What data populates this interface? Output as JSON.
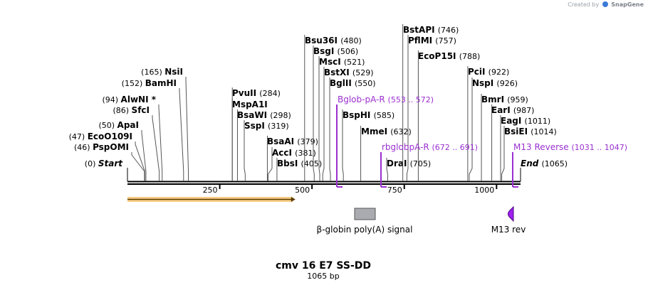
{
  "credit": {
    "prefix": "Created by",
    "brand": "SnapGene"
  },
  "map": {
    "title": "cmv 16 E7 SS-DD",
    "length_label": "1065 bp",
    "length": 1065,
    "start": {
      "name": "Start",
      "pos": 0,
      "pos_label": "(0)"
    },
    "end": {
      "name": "End",
      "pos": 1065,
      "pos_label": "(1065)"
    },
    "ticks": [
      {
        "value": 250,
        "label": "250"
      },
      {
        "value": 500,
        "label": "500"
      },
      {
        "value": 750,
        "label": "750"
      },
      {
        "value": 1000,
        "label": "1000"
      }
    ],
    "enzymes": [
      {
        "name": "PspOMI",
        "pos": 46,
        "pos_label": "(46)",
        "side": "left"
      },
      {
        "name": "EcoO109I",
        "pos": 47,
        "pos_label": "(47)",
        "side": "left"
      },
      {
        "name": "ApaI",
        "pos": 50,
        "pos_label": "(50)",
        "side": "left"
      },
      {
        "name": "SfcI",
        "pos": 86,
        "pos_label": "(86)",
        "side": "left"
      },
      {
        "name": "AlwNI *",
        "pos": 94,
        "pos_label": "(94)",
        "side": "left"
      },
      {
        "name": "BamHI",
        "pos": 152,
        "pos_label": "(152)",
        "side": "left"
      },
      {
        "name": "NsiI",
        "pos": 165,
        "pos_label": "(165)",
        "side": "left"
      },
      {
        "name": "SspI",
        "pos": 319,
        "pos_label": "(319)",
        "side": "right"
      },
      {
        "name": "BsaWI",
        "pos": 298,
        "pos_label": "(298)",
        "side": "right"
      },
      {
        "name": "MspA1I",
        "pos": 284,
        "pos_label": "",
        "side": "right"
      },
      {
        "name": "PvuII",
        "pos": 284,
        "pos_label": "(284)",
        "side": "right"
      },
      {
        "name": "BbsI",
        "pos": 405,
        "pos_label": "(405)",
        "side": "right"
      },
      {
        "name": "AccI",
        "pos": 381,
        "pos_label": "(381)",
        "side": "right"
      },
      {
        "name": "BsaAI",
        "pos": 379,
        "pos_label": "(379)",
        "side": "right"
      },
      {
        "name": "BglII",
        "pos": 550,
        "pos_label": "(550)",
        "side": "right"
      },
      {
        "name": "BstXI",
        "pos": 529,
        "pos_label": "(529)",
        "side": "right"
      },
      {
        "name": "MscI",
        "pos": 521,
        "pos_label": "(521)",
        "side": "right"
      },
      {
        "name": "BsgI",
        "pos": 506,
        "pos_label": "(506)",
        "side": "right"
      },
      {
        "name": "Bsu36I",
        "pos": 480,
        "pos_label": "(480)",
        "side": "right"
      },
      {
        "name": "BspHI",
        "pos": 585,
        "pos_label": "(585)",
        "side": "right"
      },
      {
        "name": "MmeI",
        "pos": 632,
        "pos_label": "(632)",
        "side": "right"
      },
      {
        "name": "DraI",
        "pos": 705,
        "pos_label": "(705)",
        "side": "right"
      },
      {
        "name": "BstAPI",
        "pos": 746,
        "pos_label": "(746)",
        "side": "right"
      },
      {
        "name": "PflMI",
        "pos": 757,
        "pos_label": "(757)",
        "side": "right"
      },
      {
        "name": "EcoP15I",
        "pos": 788,
        "pos_label": "(788)",
        "side": "right"
      },
      {
        "name": "PciI",
        "pos": 922,
        "pos_label": "(922)",
        "side": "right"
      },
      {
        "name": "NspI",
        "pos": 926,
        "pos_label": "(926)",
        "side": "right"
      },
      {
        "name": "BmrI",
        "pos": 959,
        "pos_label": "(959)",
        "side": "right"
      },
      {
        "name": "EarI",
        "pos": 987,
        "pos_label": "(987)",
        "side": "right"
      },
      {
        "name": "EagI",
        "pos": 1011,
        "pos_label": "(1011)",
        "side": "right"
      },
      {
        "name": "BsiEI",
        "pos": 1014,
        "pos_label": "(1014)",
        "side": "right"
      }
    ],
    "primers": [
      {
        "name": "Bglob-pA-R",
        "range_label": "(553 .. 572)",
        "start": 553,
        "end": 572,
        "direction": "reverse"
      },
      {
        "name": "rbglobpA-R",
        "range_label": "(672 .. 691)",
        "start": 672,
        "end": 691,
        "direction": "reverse"
      },
      {
        "name": "M13 Reverse",
        "range_label": "(1031 .. 1047)",
        "start": 1031,
        "end": 1047,
        "direction": "reverse"
      }
    ],
    "features": [
      {
        "name": "",
        "type": "arrow",
        "start": 0,
        "end": 455,
        "color": "#f5a623"
      },
      {
        "name": "β-globin poly(A) signal",
        "type": "box",
        "start": 620,
        "end": 676,
        "color": "#a9abb0"
      },
      {
        "name": "M13 rev",
        "type": "primer_bind",
        "start": 1031,
        "end": 1047,
        "color": "#a020f0"
      }
    ],
    "colors": {
      "primer": "#9b30d0",
      "backbone": "#000000",
      "cds": "#f5a623",
      "polyA": "#a9abb0",
      "m13": "#a020f0"
    }
  }
}
